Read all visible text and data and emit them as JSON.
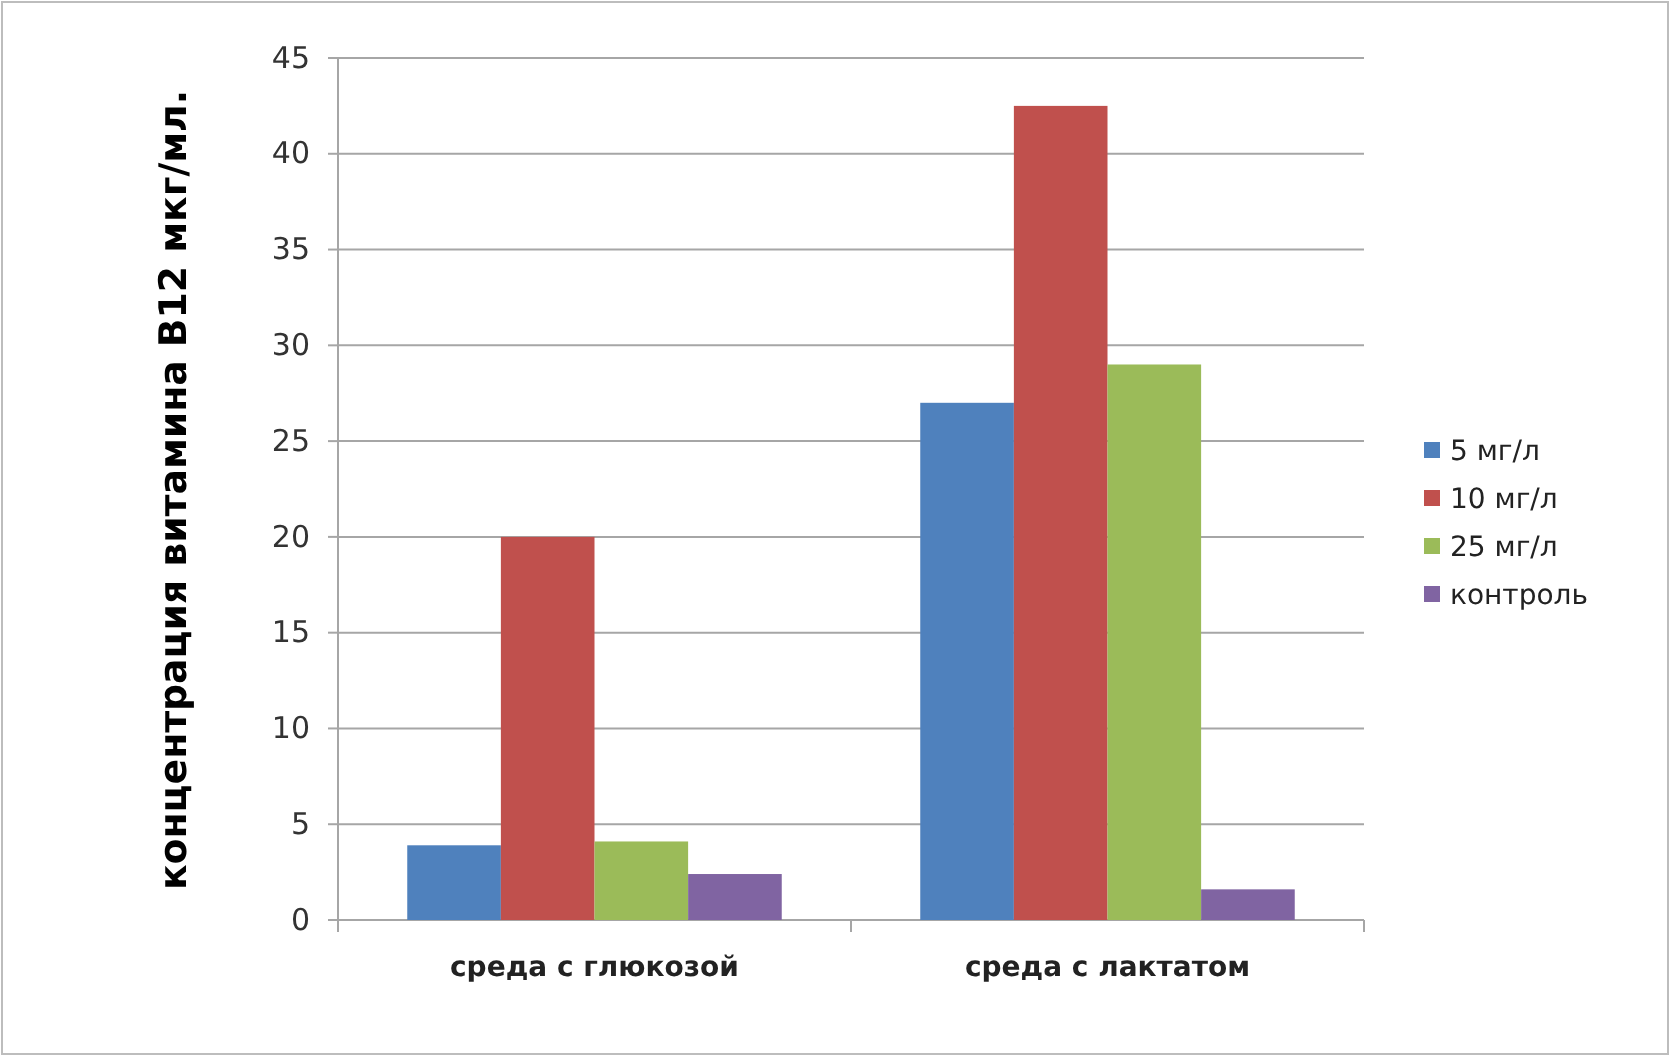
{
  "chart_data": {
    "type": "bar",
    "ylabel": "концентрация витамина В12 мкг/мл.",
    "categories": [
      "среда с глюкозой",
      "среда с лактатом"
    ],
    "series": [
      {
        "name": "5 мг/л",
        "color": "#4f81bd",
        "values": [
          3.9,
          27
        ]
      },
      {
        "name": "10 мг/л",
        "color": "#c0504d",
        "values": [
          20,
          42.5
        ]
      },
      {
        "name": "25 мг/л",
        "color": "#9bbb59",
        "values": [
          4.1,
          29
        ]
      },
      {
        "name": "контроль",
        "color": "#8064a2",
        "values": [
          2.4,
          1.6
        ]
      }
    ],
    "ylim": [
      0,
      45
    ],
    "yticks": [
      0,
      5,
      10,
      15,
      20,
      25,
      30,
      35,
      40,
      45
    ],
    "grid": "y",
    "legend": "right"
  }
}
